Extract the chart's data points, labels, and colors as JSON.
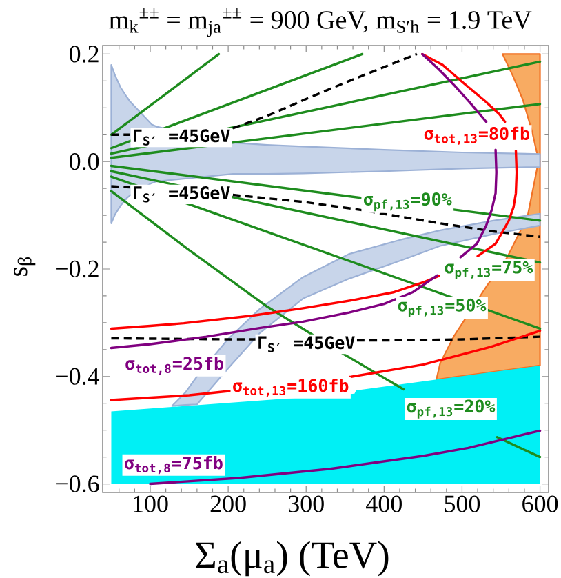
{
  "chart_data": {
    "type": "line",
    "title": "m$_{k}$$^{±±}$ = m$_{ja}$$^{±±}$ = 900 GeV, m$_{S′h}$ = 1.9 TeV",
    "xlabel": "Σ$_{a}$(μ$_{a}$) (TeV)",
    "ylabel": "s$_{β}$",
    "xlim": [
      39,
      611
    ],
    "ylim": [
      -0.616,
      0.216
    ],
    "xticks": [
      {
        "value": 60,
        "label": null
      },
      {
        "value": 80,
        "label": null
      },
      100,
      {
        "value": 120,
        "label": null
      },
      {
        "value": 140,
        "label": null
      },
      {
        "value": 160,
        "label": null
      },
      {
        "value": 180,
        "label": null
      },
      200,
      {
        "value": 220,
        "label": null
      },
      {
        "value": 240,
        "label": null
      },
      {
        "value": 260,
        "label": null
      },
      {
        "value": 280,
        "label": null
      },
      300,
      {
        "value": 320,
        "label": null
      },
      {
        "value": 340,
        "label": null
      },
      {
        "value": 360,
        "label": null
      },
      {
        "value": 380,
        "label": null
      },
      400,
      {
        "value": 420,
        "label": null
      },
      {
        "value": 440,
        "label": null
      },
      {
        "value": 460,
        "label": null
      },
      {
        "value": 480,
        "label": null
      },
      500,
      {
        "value": 520,
        "label": null
      },
      {
        "value": 540,
        "label": null
      },
      {
        "value": 560,
        "label": null
      },
      {
        "value": 580,
        "label": null
      },
      600
    ],
    "yticks": [
      {
        "value": -0.6,
        "label": "−0.6"
      },
      {
        "value": -0.55,
        "label": null
      },
      {
        "value": -0.5,
        "label": null
      },
      {
        "value": -0.45,
        "label": null
      },
      {
        "value": -0.4,
        "label": "−0.4"
      },
      {
        "value": -0.35,
        "label": null
      },
      {
        "value": -0.3,
        "label": null
      },
      {
        "value": -0.25,
        "label": null
      },
      {
        "value": -0.2,
        "label": "−0.2"
      },
      {
        "value": -0.15,
        "label": null
      },
      {
        "value": -0.1,
        "label": null
      },
      {
        "value": -0.05,
        "label": null
      },
      {
        "value": 0,
        "label": "0.0"
      },
      {
        "value": 0.05,
        "label": null
      },
      {
        "value": 0.1,
        "label": null
      },
      {
        "value": 0.15,
        "label": null
      },
      {
        "value": 0.2,
        "label": "0.2"
      }
    ],
    "series": [
      {
        "color": "#f8ab62",
        "line_style": "solid",
        "x": [
          552,
          565,
          578,
          590,
          597,
          600
        ],
        "values": [
          null,
          null,
          null,
          null,
          null,
          null
        ],
        "lower": [
          0.2,
          0.16,
          0.115,
          0.055,
          0.01,
          0.0
        ],
        "upper": [
          0.2,
          0.2,
          0.2,
          0.2,
          0.2,
          0.2
        ]
      },
      {
        "color": "#f8ab62",
        "line_style": "solid",
        "x": [
          467,
          472,
          490,
          532,
          558,
          584,
          598,
          600
        ],
        "values": [
          null,
          null,
          null,
          null,
          null,
          null,
          null,
          null
        ],
        "lower": [
          -0.406,
          -0.405,
          -0.401,
          -0.393,
          -0.388,
          -0.383,
          -0.38,
          -0.38
        ],
        "upper": [
          -0.406,
          -0.375,
          -0.324,
          -0.231,
          -0.178,
          -0.102,
          0.0,
          0.0
        ]
      },
      {
        "color": "#c8d5ea",
        "line_style": "solid",
        "x": [
          50,
          55,
          62,
          70,
          74,
          102,
          108,
          206,
          250,
          296,
          400,
          500,
          600
        ],
        "values": [
          null,
          null,
          null,
          null,
          null,
          null,
          null,
          null,
          null,
          null,
          null,
          null,
          null
        ],
        "lower": [
          -0.115,
          -0.098,
          -0.082,
          -0.068,
          -0.063,
          -0.04,
          -0.037,
          -0.023,
          -0.023,
          -0.022,
          -0.018,
          -0.013,
          -0.01
        ],
        "upper": [
          0.18,
          0.16,
          0.138,
          0.12,
          0.112,
          0.069,
          0.065,
          0.035,
          0.031,
          0.028,
          0.022,
          0.017,
          0.014
        ]
      },
      {
        "color": "#c8d5ea",
        "line_style": "solid",
        "x": [
          128,
          145,
          160,
          200,
          240,
          296,
          355,
          420,
          472,
          540,
          600
        ],
        "values": [
          null,
          null,
          null,
          null,
          null,
          null,
          null,
          null,
          null,
          null,
          null
        ],
        "lower": [
          -0.455,
          -0.453,
          -0.452,
          -0.385,
          -0.32,
          -0.255,
          -0.218,
          -0.185,
          -0.157,
          -0.135,
          -0.119
        ],
        "upper": [
          -0.455,
          -0.43,
          -0.4,
          -0.33,
          -0.275,
          -0.215,
          -0.172,
          -0.146,
          -0.128,
          -0.11,
          -0.097
        ]
      },
      {
        "color": "#00f0f5",
        "x": [
          50,
          362,
          364,
          600
        ],
        "values": [
          null,
          null,
          null,
          null
        ],
        "lower": [
          -0.6,
          -0.6,
          -0.6,
          -0.6
        ],
        "upper": [
          -0.465,
          -0.432,
          -0.426,
          -0.38
        ]
      },
      {
        "color": "#1e8c1e",
        "x": [
          50,
          600
        ],
        "values": [
          0.007,
          0.107
        ]
      },
      {
        "color": "#1e8c1e",
        "x": [
          50,
          600
        ],
        "values": [
          0.015,
          0.186
        ]
      },
      {
        "color": "#1e8c1e",
        "x": [
          50,
          372
        ],
        "values": [
          0.025,
          0.2
        ]
      },
      {
        "color": "#1e8c1e",
        "x": [
          50,
          188
        ],
        "values": [
          0.05,
          0.2
        ]
      },
      {
        "color": "#1e8c1e",
        "x": [
          50,
          600
        ],
        "values": [
          -0.008,
          -0.11
        ]
      },
      {
        "color": "#1e8c1e",
        "x": [
          50,
          600
        ],
        "values": [
          -0.018,
          -0.188
        ]
      },
      {
        "color": "#1e8c1e",
        "x": [
          50,
          600
        ],
        "values": [
          -0.028,
          -0.311
        ]
      },
      {
        "color": "#1e8c1e",
        "x": [
          50,
          150,
          250,
          350,
          425,
          485,
          545,
          600
        ],
        "values": [
          -0.055,
          -0.165,
          -0.27,
          -0.36,
          -0.424,
          null,
          -0.513,
          -0.55
        ]
      },
      {
        "color": "#000000",
        "line_style": "dashed",
        "x": [
          50,
          74,
          140,
          206,
          250,
          296,
          350,
          400,
          442
        ],
        "values": [
          0.05,
          0.05,
          null,
          0.062,
          0.085,
          0.114,
          0.147,
          0.176,
          0.2
        ]
      },
      {
        "color": "#000000",
        "line_style": "dashed",
        "x": [
          50,
          74,
          140,
          206,
          296,
          370,
          472,
          540,
          600
        ],
        "values": [
          -0.046,
          -0.048,
          null,
          -0.062,
          -0.075,
          -0.09,
          -0.115,
          -0.13,
          -0.14
        ]
      },
      {
        "color": "#000000",
        "line_style": "dashed",
        "x": [
          50,
          200,
          236,
          300,
          365,
          400,
          500,
          600
        ],
        "values": [
          -0.329,
          -0.331,
          -0.331,
          null,
          -0.333,
          -0.333,
          -0.331,
          -0.326
        ]
      },
      {
        "color": "#ff0000",
        "x": [
          449,
          475,
          502,
          530,
          548,
          555,
          565,
          569,
          570,
          569,
          566,
          560,
          543,
          520,
          484,
          470,
          450,
          413,
          360,
          296,
          230,
          143,
          100,
          50
        ],
        "values": [
          0.2,
          0.18,
          0.146,
          0.112,
          0.088,
          0.074,
          null,
          0.02,
          -0.02,
          -0.059,
          -0.085,
          -0.11,
          -0.153,
          -0.176,
          null,
          -0.213,
          -0.225,
          -0.243,
          -0.258,
          -0.273,
          -0.287,
          -0.301,
          -0.306,
          -0.311
        ]
      },
      {
        "color": "#ff0000",
        "x": [
          50,
          150,
          203,
          280,
          356,
          450,
          537,
          600
        ],
        "values": [
          -0.444,
          -0.435,
          -0.427,
          null,
          -0.401,
          -0.378,
          -0.345,
          -0.315
        ]
      },
      {
        "color": "#800080",
        "x": [
          449,
          470,
          490,
          510,
          531,
          540,
          543,
          544,
          543,
          538,
          531,
          519,
          498,
          485,
          468,
          437,
          400,
          355,
          296,
          240,
          172,
          100,
          50
        ],
        "values": [
          0.2,
          0.172,
          0.142,
          0.11,
          0.074,
          null,
          0.022,
          -0.02,
          -0.059,
          -0.09,
          -0.119,
          -0.153,
          -0.178,
          null,
          -0.212,
          -0.243,
          -0.265,
          -0.281,
          -0.298,
          -0.31,
          -0.326,
          -0.34,
          -0.347
        ]
      },
      {
        "color": "#800080",
        "x": [
          100,
          213,
          331,
          450,
          508,
          600
        ],
        "values": [
          -0.6,
          -0.589,
          -0.572,
          -0.548,
          -0.533,
          -0.501
        ]
      }
    ],
    "annotations": [
      {
        "text": "Γ$_{S′}$ =45GeV",
        "x": 74,
        "y": 0.05
      },
      {
        "text": "Γ$_{S′}$ =45GeV",
        "x": 74,
        "y": -0.048
      },
      {
        "text": "Γ$_{S′}$ =45GeV",
        "x": 236,
        "y": -0.331
      },
      {
        "text": "σ$_{tot,13}$=80fb",
        "x": 555,
        "y": 0.074
      },
      {
        "text": "σ$_{pf,13}$=90%",
        "x": 430,
        "y": -0.079
      },
      {
        "text": "σ$_{pf,13}$=75%",
        "x": 534,
        "y": -0.168
      },
      {
        "text": "σ$_{pf,13}$=50%",
        "x": 474,
        "y": -0.246
      },
      {
        "text": "σ$_{tot,8}$=25fb",
        "x": 131,
        "y": -0.334
      },
      {
        "text": "σ$_{tot,13}$=160fb",
        "x": 203,
        "y": -0.427
      },
      {
        "text": "σ$_{pf,13}$=20%",
        "x": 425,
        "y": -0.424
      },
      {
        "text": "σ$_{tot,8}$=75fb",
        "x": 130,
        "y": -0.597
      }
    ]
  }
}
